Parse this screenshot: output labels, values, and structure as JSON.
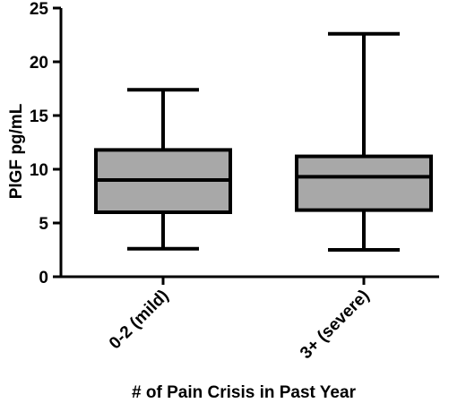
{
  "chart_data": {
    "type": "box",
    "title": "",
    "xlabel": "# of Pain Crisis in Past Year",
    "ylabel": "PlGF pg/mL",
    "ylim": [
      0,
      25
    ],
    "yticks": [
      0,
      5,
      10,
      15,
      20,
      25
    ],
    "grid": false,
    "categories": [
      "0-2 (mild)",
      "3+ (severe)"
    ],
    "boxes": [
      {
        "category": "0-2 (mild)",
        "min": 2.6,
        "q1": 6.0,
        "median": 9.0,
        "q3": 11.8,
        "max": 17.4
      },
      {
        "category": "3+ (severe)",
        "min": 2.5,
        "q1": 6.2,
        "median": 9.3,
        "q3": 11.2,
        "max": 22.6
      }
    ],
    "colors": {
      "box_fill": "#a8a8a8",
      "stroke": "#000000"
    }
  }
}
